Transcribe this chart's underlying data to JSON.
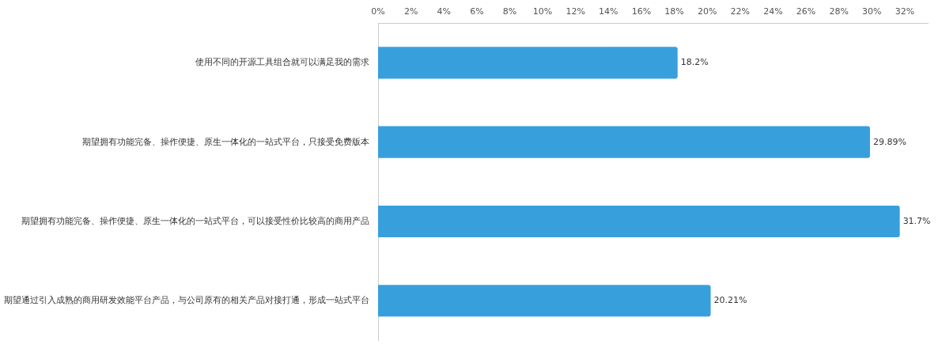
{
  "chart_data": {
    "type": "bar",
    "orientation": "horizontal",
    "categories": [
      "使用不同的开源工具组合就可以满足我的需求",
      "期望拥有功能完备、操作便捷、原生一体化的一站式平台，只接受免费版本",
      "期望拥有功能完备、操作便捷、原生一体化的一站式平台，可以接受性价比较高的商用产品",
      "期望通过引入成熟的商用研发效能平台产品，与公司原有的相关产品对接打通，形成一站式平台"
    ],
    "values": [
      18.2,
      29.89,
      31.7,
      20.21
    ],
    "value_labels": [
      "18.2%",
      "29.89%",
      "31.7%",
      "20.21%"
    ],
    "color": "#37a0dc",
    "xlim": [
      0,
      33.4
    ],
    "xticks": [
      {
        "value": 0,
        "label": "0%"
      },
      {
        "value": 2,
        "label": "2%"
      },
      {
        "value": 4,
        "label": "4%"
      },
      {
        "value": 6,
        "label": "6%"
      },
      {
        "value": 8,
        "label": "8%"
      },
      {
        "value": 10,
        "label": "10%"
      },
      {
        "value": 12,
        "label": "12%"
      },
      {
        "value": 14,
        "label": "14%"
      },
      {
        "value": 16,
        "label": "16%"
      },
      {
        "value": 18,
        "label": "18%"
      },
      {
        "value": 20,
        "label": "20%"
      },
      {
        "value": 22,
        "label": "22%"
      },
      {
        "value": 24,
        "label": "24%"
      },
      {
        "value": 26,
        "label": "26%"
      },
      {
        "value": 28,
        "label": "28%"
      },
      {
        "value": 30,
        "label": "30%"
      },
      {
        "value": 32,
        "label": "32%"
      }
    ],
    "grid": false,
    "legend": false
  }
}
